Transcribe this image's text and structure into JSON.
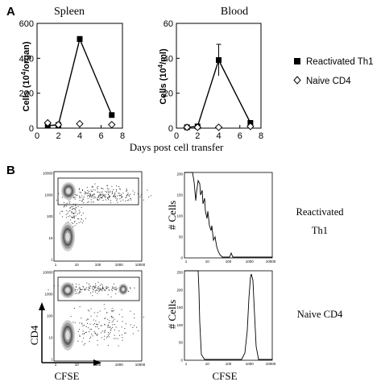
{
  "panel_labels": {
    "a": "A",
    "b": "B"
  },
  "chart_data": [
    {
      "type": "line",
      "title": "Spleen",
      "ylabel": "Cells (10^4/organ)",
      "ylabel_parts": [
        "Cells ",
        "(10",
        "4",
        "/organ)"
      ],
      "xlim": [
        0,
        8
      ],
      "ylim": [
        0,
        600
      ],
      "xticks": [
        0,
        2,
        4,
        6,
        8
      ],
      "yticks": [
        0,
        200,
        400,
        600
      ],
      "series": [
        {
          "name": "Reactivated Th1",
          "marker": "filled-square",
          "x": [
            1,
            2,
            4,
            7
          ],
          "y": [
            15,
            18,
            510,
            75
          ],
          "yerr": [
            0,
            0,
            15,
            0
          ]
        },
        {
          "name": "Naive CD4",
          "marker": "open-diamond",
          "x": [
            1,
            2,
            4,
            7
          ],
          "y": [
            30,
            20,
            25,
            20
          ]
        }
      ]
    },
    {
      "type": "line",
      "title": "Blood",
      "ylabel": "Cells (10^4/ml)",
      "ylabel_parts": [
        "Cells ",
        "(10",
        "4",
        "/ml)"
      ],
      "xlim": [
        0,
        8
      ],
      "ylim": [
        0,
        60
      ],
      "xticks": [
        0,
        2,
        4,
        6,
        8
      ],
      "yticks": [
        0,
        20,
        40,
        60
      ],
      "series": [
        {
          "name": "Reactivated Th1",
          "marker": "filled-square",
          "x": [
            1,
            2,
            4,
            7
          ],
          "y": [
            0.5,
            1,
            39,
            3
          ],
          "yerr": [
            0,
            0,
            9,
            0
          ]
        },
        {
          "name": "Naive CD4",
          "marker": "open-diamond",
          "x": [
            1,
            2,
            4,
            7
          ],
          "y": [
            0.5,
            0.5,
            0.5,
            1
          ]
        }
      ]
    }
  ],
  "shared_xlabel": "Days post cell transfer",
  "legend": [
    "Reactivated Th1",
    "Naive CD4"
  ],
  "flow": {
    "x_axis_label": "CFSE",
    "y_axis_label": "CD4",
    "hist_ylabel": "# Cells",
    "hist_xlabel": "CFSE",
    "log_ticks": [
      "1",
      "10",
      "100",
      "1000",
      "10000"
    ],
    "rows": [
      {
        "label_line1": "Reactivated",
        "label_line2": "Th1",
        "hist_yticks": [
          "0",
          "50",
          "100",
          "150",
          "200"
        ]
      },
      {
        "label_line1": "Naive CD4",
        "label_line2": "",
        "hist_yticks": [
          "0",
          "50",
          "100",
          "150",
          "200",
          "250"
        ]
      }
    ]
  },
  "colors": {
    "ink": "#000000",
    "dot": "#333333",
    "paper": "#ffffff"
  }
}
